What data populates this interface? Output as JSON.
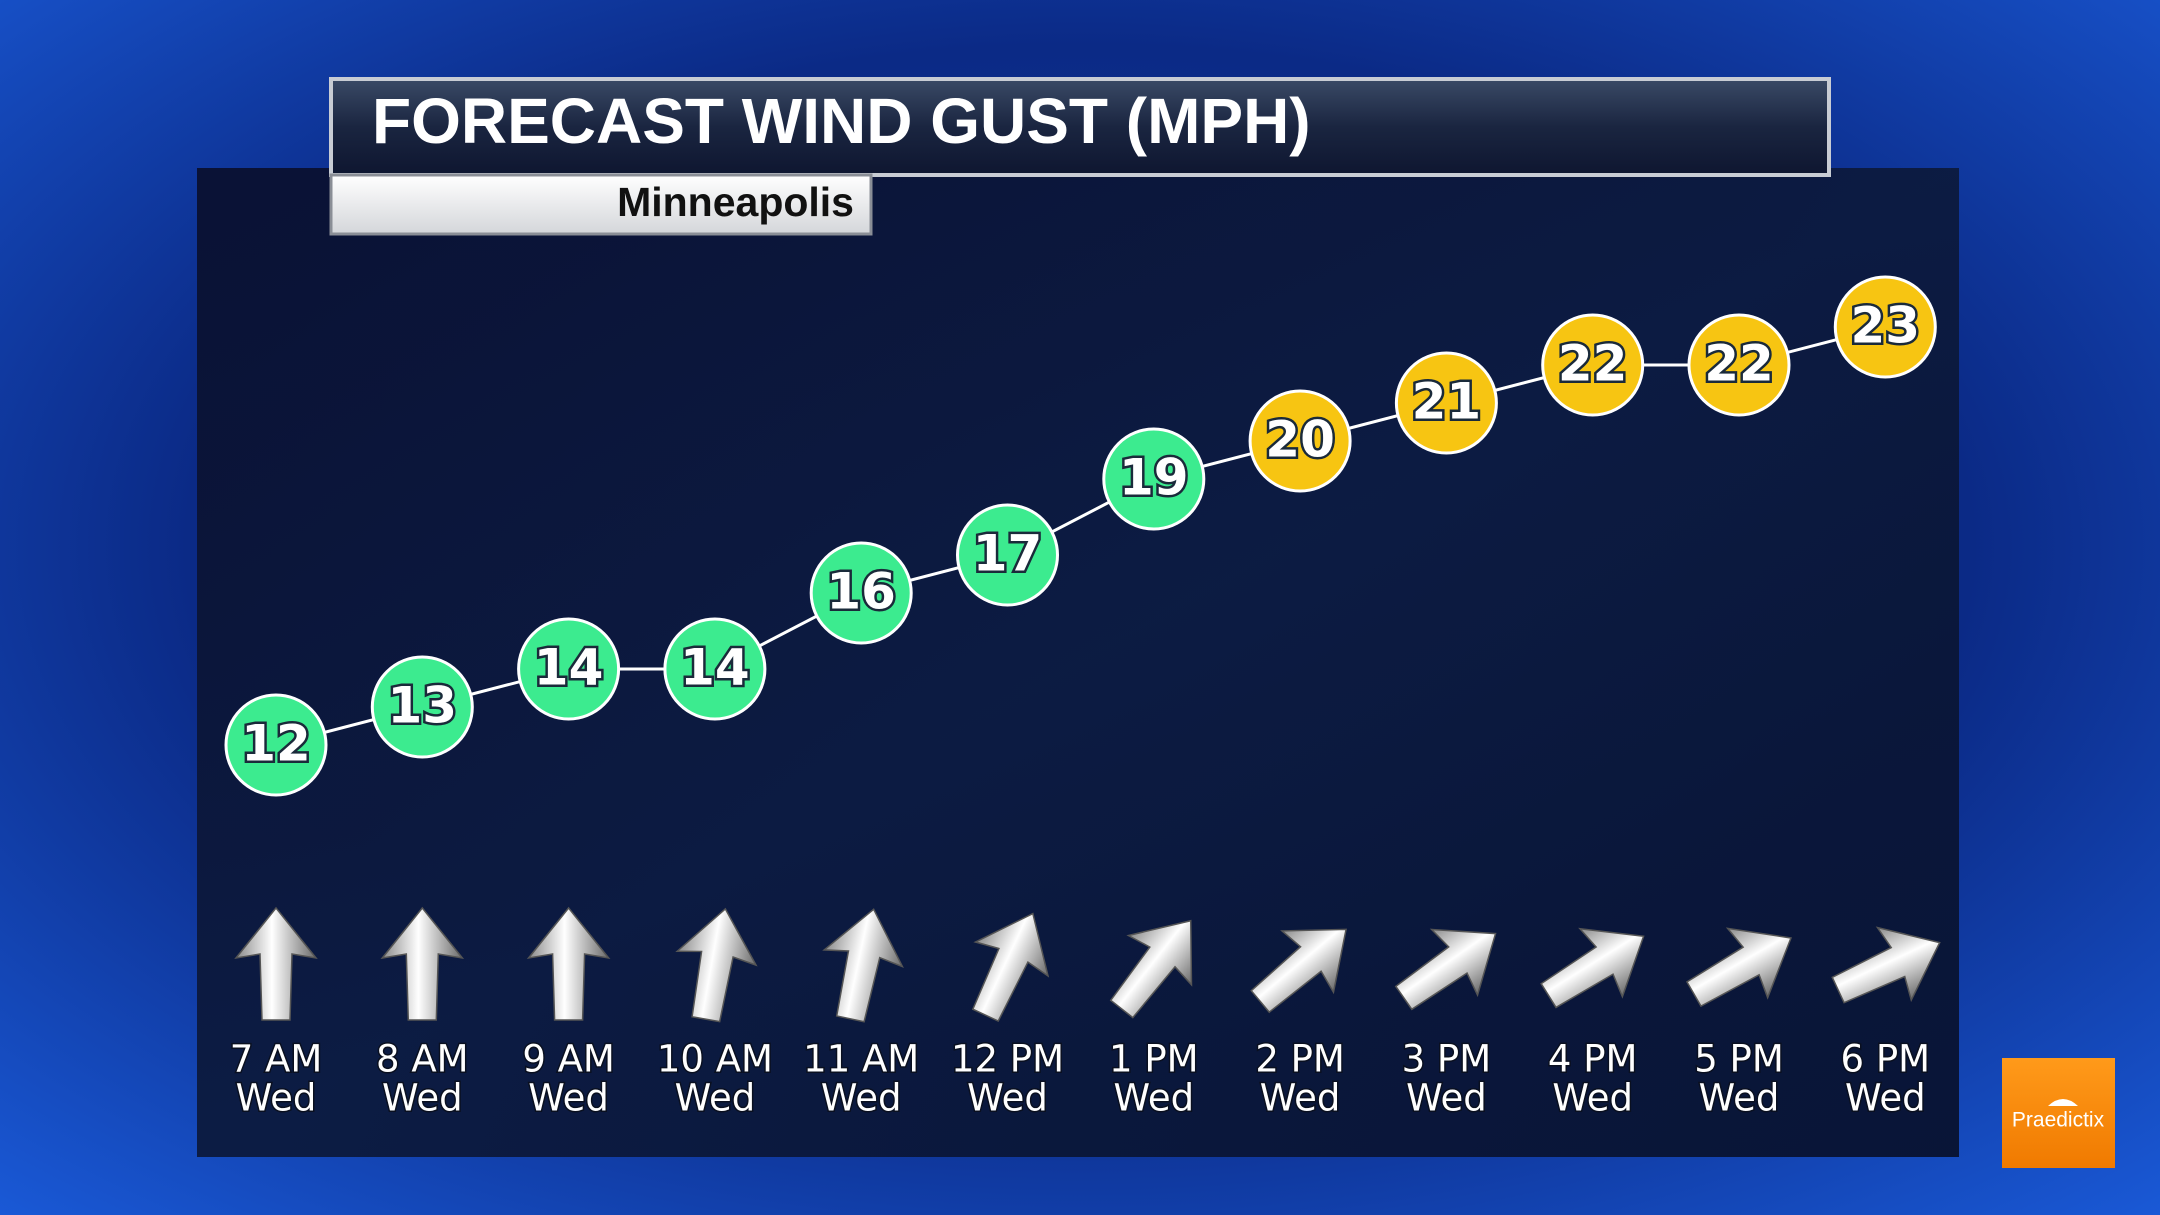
{
  "chart_data": {
    "type": "line",
    "title": "FORECAST WIND GUST (MPH)",
    "subtitle": "Minneapolis",
    "categories": [
      "7 AM",
      "8 AM",
      "9 AM",
      "10 AM",
      "11 AM",
      "12 PM",
      "1 PM",
      "2 PM",
      "3 PM",
      "4 PM",
      "5 PM",
      "6 PM"
    ],
    "category_days": [
      "Wed",
      "Wed",
      "Wed",
      "Wed",
      "Wed",
      "Wed",
      "Wed",
      "Wed",
      "Wed",
      "Wed",
      "Wed",
      "Wed"
    ],
    "values": [
      12,
      13,
      14,
      14,
      16,
      17,
      19,
      20,
      21,
      22,
      22,
      23
    ],
    "point_colors": [
      "#3ceb8f",
      "#3ceb8f",
      "#3ceb8f",
      "#3ceb8f",
      "#3ceb8f",
      "#3ceb8f",
      "#3ceb8f",
      "#f7c512",
      "#f7c512",
      "#f7c512",
      "#f7c512",
      "#f7c512"
    ],
    "wind_direction_deg": [
      0,
      0,
      0,
      10,
      12,
      25,
      38,
      50,
      55,
      58,
      60,
      65
    ],
    "ylim": [
      10,
      25
    ],
    "line_color": "#ffffff",
    "logo": "Praedictix"
  }
}
